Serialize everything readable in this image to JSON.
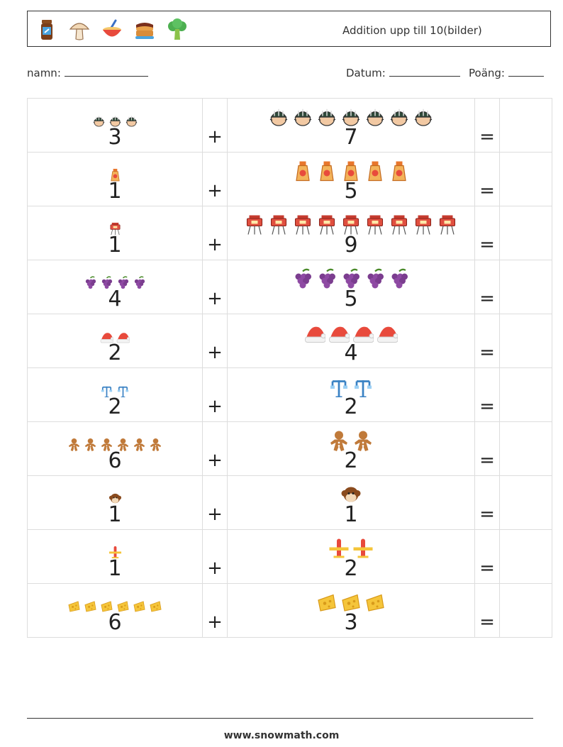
{
  "header": {
    "title": "Addition upp till 10(bilder)",
    "icons": [
      "jar-icon",
      "mushroom-icon",
      "bowl-icon",
      "pancake-stack-icon",
      "broccoli-icon"
    ]
  },
  "fields": {
    "name_label": "namn:",
    "date_label": "Datum:",
    "score_label": "Poäng:"
  },
  "problems": [
    {
      "a": "3",
      "b": "7",
      "icon": "helmet-head-icon",
      "plus": "+",
      "equals": "="
    },
    {
      "a": "1",
      "b": "5",
      "icon": "sunscreen-icon",
      "plus": "+",
      "equals": "="
    },
    {
      "a": "1",
      "b": "9",
      "icon": "lantern-icon",
      "plus": "+",
      "equals": "="
    },
    {
      "a": "4",
      "b": "5",
      "icon": "grapes-icon",
      "plus": "+",
      "equals": "="
    },
    {
      "a": "2",
      "b": "4",
      "icon": "santa-hat-icon",
      "plus": "+",
      "equals": "="
    },
    {
      "a": "2",
      "b": "2",
      "icon": "lamp-post-icon",
      "plus": "+",
      "equals": "="
    },
    {
      "a": "6",
      "b": "2",
      "icon": "gingerbread-man-icon",
      "plus": "+",
      "equals": "="
    },
    {
      "a": "1",
      "b": "1",
      "icon": "monkey-face-icon",
      "plus": "+",
      "equals": "="
    },
    {
      "a": "1",
      "b": "2",
      "icon": "airplane-icon",
      "plus": "+",
      "equals": "="
    },
    {
      "a": "6",
      "b": "3",
      "icon": "cheese-icon",
      "plus": "+",
      "equals": "="
    }
  ],
  "footer": {
    "website": "www.snowmath.com"
  }
}
